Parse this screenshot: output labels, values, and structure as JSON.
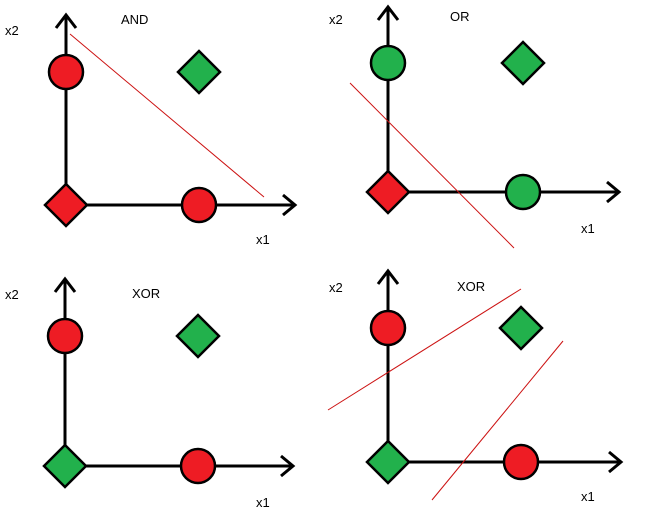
{
  "colors": {
    "red": "#ee1c24",
    "green": "#22b14c",
    "axis": "#000000",
    "boundary": "#cc1111"
  },
  "panels": [
    {
      "title": "AND",
      "x_label": "x1",
      "y_label": "x2",
      "points": [
        {
          "x1": 0,
          "x2": 1,
          "shape": "circle",
          "color": "red"
        },
        {
          "x1": 1,
          "x2": 1,
          "shape": "diamond",
          "color": "green"
        },
        {
          "x1": 0,
          "x2": 0,
          "shape": "diamond",
          "color": "red"
        },
        {
          "x1": 1,
          "x2": 0,
          "shape": "circle",
          "color": "red"
        }
      ]
    },
    {
      "title": "OR",
      "x_label": "x1",
      "y_label": "x2",
      "points": [
        {
          "x1": 0,
          "x2": 1,
          "shape": "circle",
          "color": "green"
        },
        {
          "x1": 1,
          "x2": 1,
          "shape": "diamond",
          "color": "green"
        },
        {
          "x1": 0,
          "x2": 0,
          "shape": "diamond",
          "color": "red"
        },
        {
          "x1": 1,
          "x2": 0,
          "shape": "circle",
          "color": "green"
        }
      ]
    },
    {
      "title": "XOR",
      "x_label": "x1",
      "y_label": "x2",
      "points": [
        {
          "x1": 0,
          "x2": 1,
          "shape": "circle",
          "color": "red"
        },
        {
          "x1": 1,
          "x2": 1,
          "shape": "diamond",
          "color": "green"
        },
        {
          "x1": 0,
          "x2": 0,
          "shape": "diamond",
          "color": "green"
        },
        {
          "x1": 1,
          "x2": 0,
          "shape": "circle",
          "color": "red"
        }
      ]
    },
    {
      "title": "XOR",
      "x_label": "x1",
      "y_label": "x2",
      "points": [
        {
          "x1": 0,
          "x2": 1,
          "shape": "circle",
          "color": "red"
        },
        {
          "x1": 1,
          "x2": 1,
          "shape": "diamond",
          "color": "green"
        },
        {
          "x1": 0,
          "x2": 0,
          "shape": "diamond",
          "color": "green"
        },
        {
          "x1": 1,
          "x2": 0,
          "shape": "circle",
          "color": "red"
        }
      ]
    }
  ]
}
